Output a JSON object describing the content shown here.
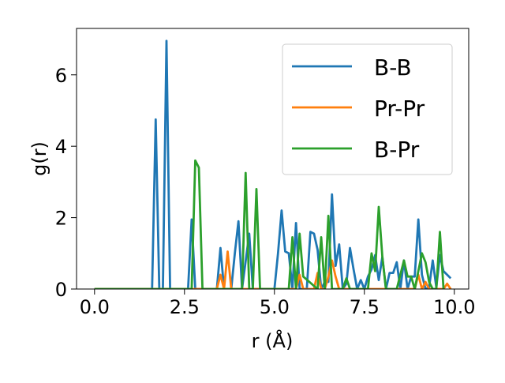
{
  "chart_data": {
    "type": "line",
    "xlabel": "r (Å)",
    "ylabel": "g(r)",
    "xlim": [
      -0.5,
      10.4
    ],
    "ylim": [
      0,
      7.3
    ],
    "xticks": [
      0.0,
      2.5,
      5.0,
      7.5,
      10.0
    ],
    "xtick_labels": [
      "0.0",
      "2.5",
      "5.0",
      "7.5",
      "10.0"
    ],
    "yticks": [
      0,
      2,
      4,
      6
    ],
    "ytick_labels": [
      "0",
      "2",
      "4",
      "6"
    ],
    "legend_position": "top-right",
    "grid": false,
    "series": [
      {
        "name": "B-B",
        "color": "#1f77b4",
        "points": [
          [
            0.0,
            0
          ],
          [
            1.6,
            0
          ],
          [
            1.7,
            4.75
          ],
          [
            1.8,
            0
          ],
          [
            1.9,
            0
          ],
          [
            2.0,
            6.95
          ],
          [
            2.1,
            0
          ],
          [
            2.6,
            0
          ],
          [
            2.7,
            1.95
          ],
          [
            2.8,
            0
          ],
          [
            3.4,
            0
          ],
          [
            3.5,
            1.15
          ],
          [
            3.6,
            0
          ],
          [
            3.8,
            0
          ],
          [
            3.9,
            1.0
          ],
          [
            4.0,
            1.9
          ],
          [
            4.1,
            0
          ],
          [
            4.3,
            1.55
          ],
          [
            4.4,
            0
          ],
          [
            5.0,
            0
          ],
          [
            5.1,
            1.0
          ],
          [
            5.2,
            2.2
          ],
          [
            5.3,
            1.05
          ],
          [
            5.4,
            1.0
          ],
          [
            5.5,
            0
          ],
          [
            5.6,
            1.85
          ],
          [
            5.7,
            0
          ],
          [
            5.9,
            0
          ],
          [
            6.0,
            1.6
          ],
          [
            6.1,
            1.55
          ],
          [
            6.2,
            1.1
          ],
          [
            6.3,
            0
          ],
          [
            6.4,
            0.2
          ],
          [
            6.5,
            0.2
          ],
          [
            6.6,
            2.65
          ],
          [
            6.7,
            0.65
          ],
          [
            6.8,
            1.25
          ],
          [
            6.9,
            0
          ],
          [
            7.0,
            0.15
          ],
          [
            7.1,
            1.15
          ],
          [
            7.2,
            0.55
          ],
          [
            7.3,
            0
          ],
          [
            7.4,
            0.25
          ],
          [
            7.5,
            0
          ],
          [
            7.6,
            0.35
          ],
          [
            7.7,
            0.55
          ],
          [
            7.8,
            0.95
          ],
          [
            7.9,
            0.25
          ],
          [
            8.0,
            0.9
          ],
          [
            8.1,
            0
          ],
          [
            8.2,
            0.45
          ],
          [
            8.3,
            0.45
          ],
          [
            8.4,
            0.75
          ],
          [
            8.5,
            0
          ],
          [
            8.6,
            0.8
          ],
          [
            8.7,
            0
          ],
          [
            8.8,
            0.35
          ],
          [
            8.9,
            0.35
          ],
          [
            9.0,
            1.95
          ],
          [
            9.1,
            0.4
          ],
          [
            9.2,
            0
          ],
          [
            9.3,
            0.05
          ],
          [
            9.4,
            0.8
          ],
          [
            9.5,
            0.05
          ],
          [
            9.6,
            0.95
          ],
          [
            9.7,
            0.5
          ],
          [
            9.8,
            0.4
          ],
          [
            9.9,
            0.3
          ]
        ]
      },
      {
        "name": "Pr-Pr",
        "color": "#ff7f0e",
        "points": [
          [
            0.0,
            0
          ],
          [
            3.4,
            0
          ],
          [
            3.5,
            0.4
          ],
          [
            3.6,
            0
          ],
          [
            3.7,
            1.05
          ],
          [
            3.8,
            0
          ],
          [
            5.6,
            0
          ],
          [
            5.7,
            0.4
          ],
          [
            5.8,
            0
          ],
          [
            6.1,
            0
          ],
          [
            6.2,
            0.45
          ],
          [
            6.3,
            0
          ],
          [
            6.4,
            0
          ],
          [
            6.5,
            0.35
          ],
          [
            6.6,
            0.8
          ],
          [
            6.7,
            0.35
          ],
          [
            6.8,
            0
          ],
          [
            8.9,
            0
          ],
          [
            9.0,
            0.4
          ],
          [
            9.1,
            0
          ],
          [
            9.2,
            0.2
          ],
          [
            9.3,
            0
          ],
          [
            9.7,
            0
          ],
          [
            9.8,
            0.15
          ],
          [
            9.9,
            0
          ]
        ]
      },
      {
        "name": "B-Pr",
        "color": "#2ca02c",
        "points": [
          [
            0.0,
            0
          ],
          [
            2.7,
            0
          ],
          [
            2.8,
            3.6
          ],
          [
            2.9,
            3.4
          ],
          [
            3.0,
            0
          ],
          [
            4.1,
            0
          ],
          [
            4.2,
            3.25
          ],
          [
            4.3,
            0
          ],
          [
            4.4,
            0
          ],
          [
            4.5,
            2.8
          ],
          [
            4.6,
            0
          ],
          [
            5.4,
            0
          ],
          [
            5.5,
            1.45
          ],
          [
            5.6,
            0
          ],
          [
            5.7,
            1.55
          ],
          [
            5.8,
            0.35
          ],
          [
            6.2,
            0
          ],
          [
            6.3,
            1.45
          ],
          [
            6.4,
            0
          ],
          [
            6.5,
            2.05
          ],
          [
            6.6,
            0
          ],
          [
            6.9,
            0
          ],
          [
            7.0,
            0.3
          ],
          [
            7.1,
            0
          ],
          [
            7.6,
            0
          ],
          [
            7.7,
            1.0
          ],
          [
            7.8,
            0.5
          ],
          [
            7.9,
            2.3
          ],
          [
            8.0,
            0.9
          ],
          [
            8.1,
            0
          ],
          [
            8.4,
            0
          ],
          [
            8.5,
            0.4
          ],
          [
            8.6,
            0.8
          ],
          [
            8.7,
            0.35
          ],
          [
            8.8,
            0.35
          ],
          [
            8.9,
            0
          ],
          [
            9.0,
            0.5
          ],
          [
            9.1,
            1.0
          ],
          [
            9.2,
            0.75
          ],
          [
            9.3,
            0.2
          ],
          [
            9.4,
            0
          ],
          [
            9.5,
            0
          ],
          [
            9.6,
            1.6
          ],
          [
            9.7,
            0
          ]
        ]
      }
    ]
  }
}
